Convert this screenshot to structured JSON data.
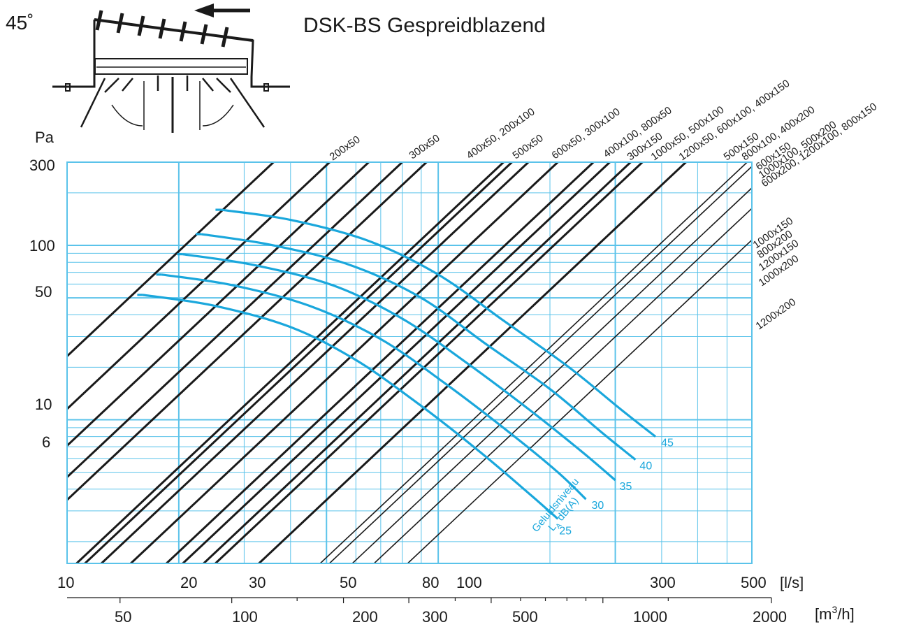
{
  "chart_data": {
    "type": "line",
    "title": "DSK-BS Gespreidblazend",
    "angle_label": "45˚",
    "ylabel": "Pa",
    "xlabel_ls": "[l/s]",
    "xlabel_m3h_prefix": "[m",
    "xlabel_m3h_sup": "3",
    "xlabel_m3h_suffix": "/h]",
    "x_scale": "log",
    "y_scale": "log",
    "xlim": [
      10,
      700
    ],
    "ylim": [
      1.5,
      300
    ],
    "grid": true,
    "y_ticks": [
      "300",
      "100",
      "50",
      "10",
      "6"
    ],
    "x_ticks_ls": [
      "10",
      "20",
      "30",
      "50",
      "80",
      "100",
      "300",
      "500"
    ],
    "x_ticks_m3h": [
      "50",
      "100",
      "200",
      "300",
      "500",
      "1000",
      "2000"
    ],
    "noise_label_1": "Geluidsniveau",
    "noise_label_2": "L",
    "noise_label_2_sub": "A",
    "noise_label_2_suffix": " dB(A)",
    "size_lines": [
      {
        "name": "200x50",
        "x_at_300": 36
      },
      {
        "name": "300x50",
        "x_at_300": 51
      },
      {
        "name": "400x50, 200x100",
        "x_at_300": 65
      },
      {
        "name": "500x50",
        "x_at_300": 80
      },
      {
        "name": "600x50, 300x100",
        "x_at_300": 93
      },
      {
        "name": "400x100, 800x50",
        "x_at_300": 150
      },
      {
        "name": "300x150",
        "x_at_300": 158
      },
      {
        "name": "1000x50, 500x100",
        "x_at_300": 175
      },
      {
        "name": "1200x50, 600x100, 400x150",
        "x_at_300": 210
      },
      {
        "name": "500x150",
        "x_at_300": 262
      },
      {
        "name": "800x100, 400x200",
        "x_at_300": 290
      },
      {
        "name": "600x150",
        "x_at_300": 330
      },
      {
        "name": "1000x100, 500x200",
        "x_at_300": 355
      },
      {
        "name": "600x200, 1200x100, 800x150",
        "x_at_300": 465
      },
      {
        "name": "1000x150",
        "x_at_300": 680
      },
      {
        "name": "800x200",
        "x_at_300": 720
      },
      {
        "name": "1200x150",
        "x_at_300": 830
      },
      {
        "name": "1000x200",
        "x_at_300": 950
      },
      {
        "name": "1200x200",
        "x_at_300": 1170
      }
    ],
    "noise_curves": [
      {
        "name": "25",
        "points": [
          [
            16.0,
            52
          ],
          [
            25,
            45
          ],
          [
            40,
            34
          ],
          [
            60,
            22
          ],
          [
            90,
            12
          ],
          [
            130,
            6.5
          ],
          [
            175,
            3.8
          ],
          [
            210,
            2.7
          ]
        ]
      },
      {
        "name": "30",
        "points": [
          [
            18.0,
            68
          ],
          [
            28,
            59
          ],
          [
            45,
            45
          ],
          [
            70,
            29
          ],
          [
            105,
            16
          ],
          [
            155,
            8.5
          ],
          [
            210,
            5.0
          ],
          [
            250,
            3.5
          ]
        ]
      },
      {
        "name": "35",
        "points": [
          [
            20.5,
            89
          ],
          [
            32,
            77
          ],
          [
            52,
            59
          ],
          [
            80,
            38
          ],
          [
            120,
            21
          ],
          [
            180,
            11
          ],
          [
            245,
            6.5
          ],
          [
            300,
            4.5
          ]
        ]
      },
      {
        "name": "40",
        "points": [
          [
            23.0,
            116
          ],
          [
            36,
            100
          ],
          [
            58,
            77
          ],
          [
            90,
            50
          ],
          [
            135,
            27
          ],
          [
            200,
            15
          ],
          [
            275,
            8.5
          ],
          [
            340,
            5.9
          ]
        ]
      },
      {
        "name": "45",
        "points": [
          [
            26.0,
            160
          ],
          [
            40,
            140
          ],
          [
            65,
            106
          ],
          [
            100,
            68
          ],
          [
            150,
            37
          ],
          [
            225,
            20
          ],
          [
            310,
            11.5
          ],
          [
            385,
            8.0
          ]
        ]
      }
    ]
  }
}
